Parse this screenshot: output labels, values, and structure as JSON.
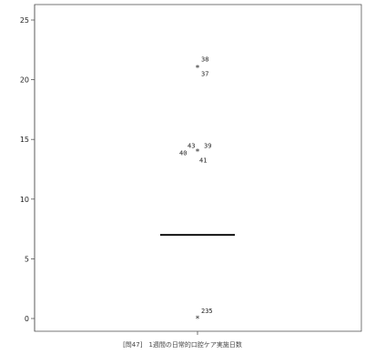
{
  "chart_data": {
    "type": "box",
    "title": "",
    "xlabel": "[問47]　1週間の日常的口腔ケア実施日数",
    "ylabel": "",
    "ylim": [
      0,
      26
    ],
    "yticks": [
      0,
      5,
      10,
      15,
      20,
      25
    ],
    "grid": false,
    "box": {
      "median": 7
    },
    "outliers": [
      {
        "y": 21,
        "labels": [
          "38",
          "37"
        ]
      },
      {
        "y": 14,
        "labels": [
          "43",
          "39",
          "40",
          "41"
        ]
      },
      {
        "y": 0,
        "labels": [
          "235"
        ]
      }
    ],
    "colors": {
      "axis": "#555555",
      "frame": "#555555",
      "median": "#111111",
      "marker": "#222222"
    }
  }
}
